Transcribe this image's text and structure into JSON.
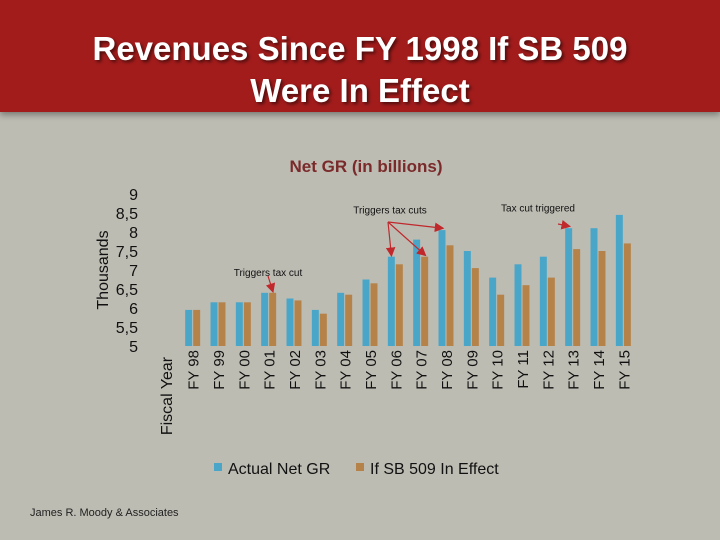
{
  "slide": {
    "title_line1": "Revenues Since FY 1998 If SB 509",
    "title_line2": "Were In Effect",
    "footer": "James R. Moody & Associates"
  },
  "colors": {
    "title_bg": "#a31c1c",
    "background": "#bdbcb3",
    "actual": "#4aa6c8",
    "sb509": "#b5834a",
    "arrow": "#c0282c"
  },
  "chart_data": {
    "type": "bar",
    "title": "Net GR (in billions)",
    "ylabel": "Thousands",
    "xlabel": "Fiscal Year",
    "ylim": [
      5,
      9
    ],
    "y_ticks": [
      "9",
      "8,5",
      "8",
      "7,5",
      "7",
      "6,5",
      "6",
      "5,5",
      "5"
    ],
    "categories": [
      "FY 98",
      "FY 99",
      "FY 00",
      "FY 01",
      "FY 02",
      "FY 03",
      "FY 04",
      "FY 05",
      "FY 06",
      "FY 07",
      "FY 08",
      "FY 09",
      "FY 10",
      "FY 11",
      "FY 12",
      "FY 13",
      "FY 14",
      "FY 15"
    ],
    "series": [
      {
        "name": "Actual Net GR",
        "values": [
          5.95,
          6.15,
          6.15,
          6.4,
          6.25,
          5.95,
          6.4,
          6.75,
          7.35,
          7.8,
          8.05,
          7.5,
          6.8,
          7.15,
          7.35,
          8.1,
          8.1,
          8.45
        ]
      },
      {
        "name": "If SB 509 In Effect",
        "values": [
          5.95,
          6.15,
          6.15,
          6.4,
          6.2,
          5.85,
          6.35,
          6.65,
          7.15,
          7.35,
          7.65,
          7.05,
          6.35,
          6.6,
          6.8,
          7.55,
          7.5,
          7.7
        ]
      }
    ],
    "annotations": [
      {
        "text": "Triggers tax cuts",
        "category": "FY 06",
        "value": 8.65
      },
      {
        "text": "Tax cut triggered",
        "category": "FY 13",
        "value": 8.7
      },
      {
        "text": "Triggers tax cut",
        "category": "FY 01",
        "value": 7.0
      }
    ],
    "legend": [
      "Actual Net GR",
      "If SB 509 In Effect"
    ]
  }
}
